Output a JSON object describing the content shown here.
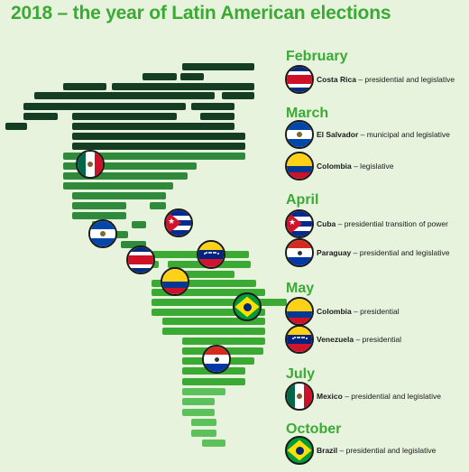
{
  "title": "2018 – the year of Latin American elections",
  "months": [
    {
      "label": "February",
      "entries": [
        {
          "country": "Costa Rica",
          "desc": " – presidential and legislative",
          "flag": "costa-rica"
        }
      ]
    },
    {
      "label": "March",
      "entries": [
        {
          "country": "El Salvador",
          "desc": " – municipal and legislative",
          "flag": "el-salvador"
        },
        {
          "country": "Colombia",
          "desc": " – legislative",
          "flag": "colombia"
        }
      ]
    },
    {
      "label": "April",
      "entries": [
        {
          "country": "Cuba",
          "desc": " – presidential transition of power",
          "flag": "cuba"
        },
        {
          "country": "Paraguay",
          "desc": " – presidential and legislative",
          "flag": "paraguay"
        }
      ]
    },
    {
      "label": "May",
      "entries": [
        {
          "country": "Colombia",
          "desc": " – presidential",
          "flag": "colombia"
        },
        {
          "country": "Venezuela",
          "desc": " – presidential",
          "flag": "venezuela"
        }
      ]
    },
    {
      "label": "July",
      "entries": [
        {
          "country": "Mexico",
          "desc": " – presidential and legislative",
          "flag": "mexico"
        }
      ]
    },
    {
      "label": "October",
      "entries": [
        {
          "country": "Brazil",
          "desc": " – presidential and legislative",
          "flag": "brazil"
        }
      ]
    }
  ],
  "colors": {
    "title": "#3aaa35",
    "dark": "#143d23",
    "mid": "#2f8a3c",
    "light": "#3aaa35",
    "pale": "#5cc15a"
  }
}
